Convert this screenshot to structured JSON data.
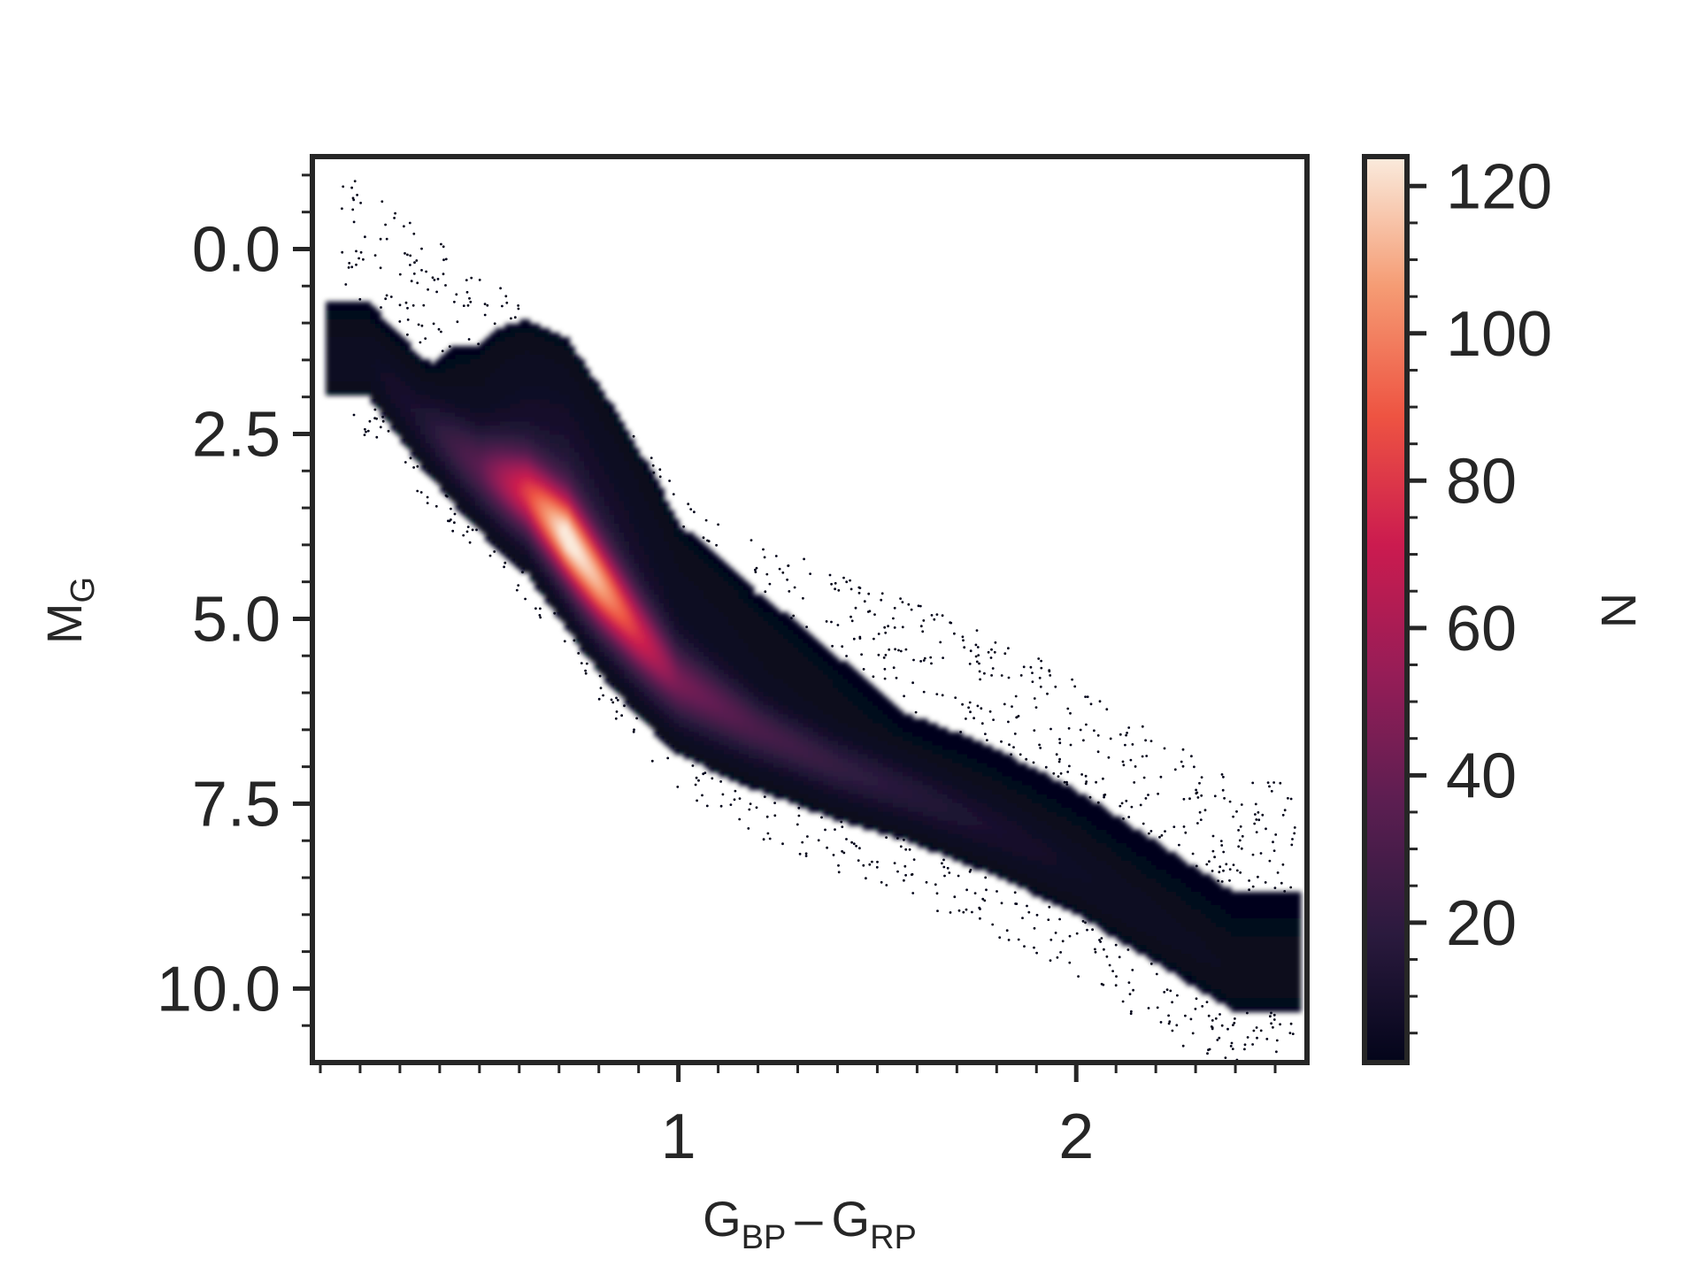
{
  "chart_data": {
    "type": "heatmap",
    "title": "",
    "xlabel": "G",
    "xlabel_sub_1": "BP",
    "xlabel_minus": "–",
    "xlabel_g2": "G",
    "xlabel_sub_2": "RP",
    "ylabel": "M",
    "ylabel_sub": "G",
    "xlim": [
      0.08,
      2.58
    ],
    "ylim": [
      11.0,
      -1.25
    ],
    "y_inverted": true,
    "x_ticks": [
      1,
      2
    ],
    "x_tick_labels": [
      "1",
      "2"
    ],
    "y_ticks": [
      0.0,
      2.5,
      5.0,
      7.5,
      10.0
    ],
    "y_tick_labels": [
      "0.0",
      "2.5",
      "5.0",
      "7.5",
      "10.0"
    ],
    "grid": false,
    "colorbar": {
      "label": "N",
      "range": [
        1,
        124
      ],
      "ticks": [
        20,
        40,
        60,
        80,
        100,
        120
      ],
      "tick_labels": [
        "20",
        "40",
        "60",
        "80",
        "100",
        "120"
      ],
      "colormap": "rocket",
      "colors": [
        "#03051a",
        "#2b1a3e",
        "#5b1e51",
        "#961d57",
        "#cb1b4f",
        "#ee5442",
        "#f59c74",
        "#faebdd"
      ]
    },
    "density_ridge": [
      {
        "x": 0.22,
        "y": 1.5,
        "peak": 3
      },
      {
        "x": 0.35,
        "y": 2.3,
        "peak": 10
      },
      {
        "x": 0.5,
        "y": 2.95,
        "peak": 30
      },
      {
        "x": 0.62,
        "y": 3.3,
        "peak": 70
      },
      {
        "x": 0.72,
        "y": 3.9,
        "peak": 110
      },
      {
        "x": 0.8,
        "y": 4.5,
        "peak": 95
      },
      {
        "x": 0.9,
        "y": 5.2,
        "peak": 65
      },
      {
        "x": 1.0,
        "y": 5.85,
        "peak": 38
      },
      {
        "x": 1.2,
        "y": 6.5,
        "peak": 25
      },
      {
        "x": 1.4,
        "y": 7.0,
        "peak": 18
      },
      {
        "x": 1.6,
        "y": 7.4,
        "peak": 13
      },
      {
        "x": 1.8,
        "y": 7.85,
        "peak": 8
      },
      {
        "x": 2.0,
        "y": 8.4,
        "peak": 4
      },
      {
        "x": 2.2,
        "y": 9.1,
        "peak": 2
      },
      {
        "x": 2.4,
        "y": 9.8,
        "peak": 1
      }
    ]
  }
}
